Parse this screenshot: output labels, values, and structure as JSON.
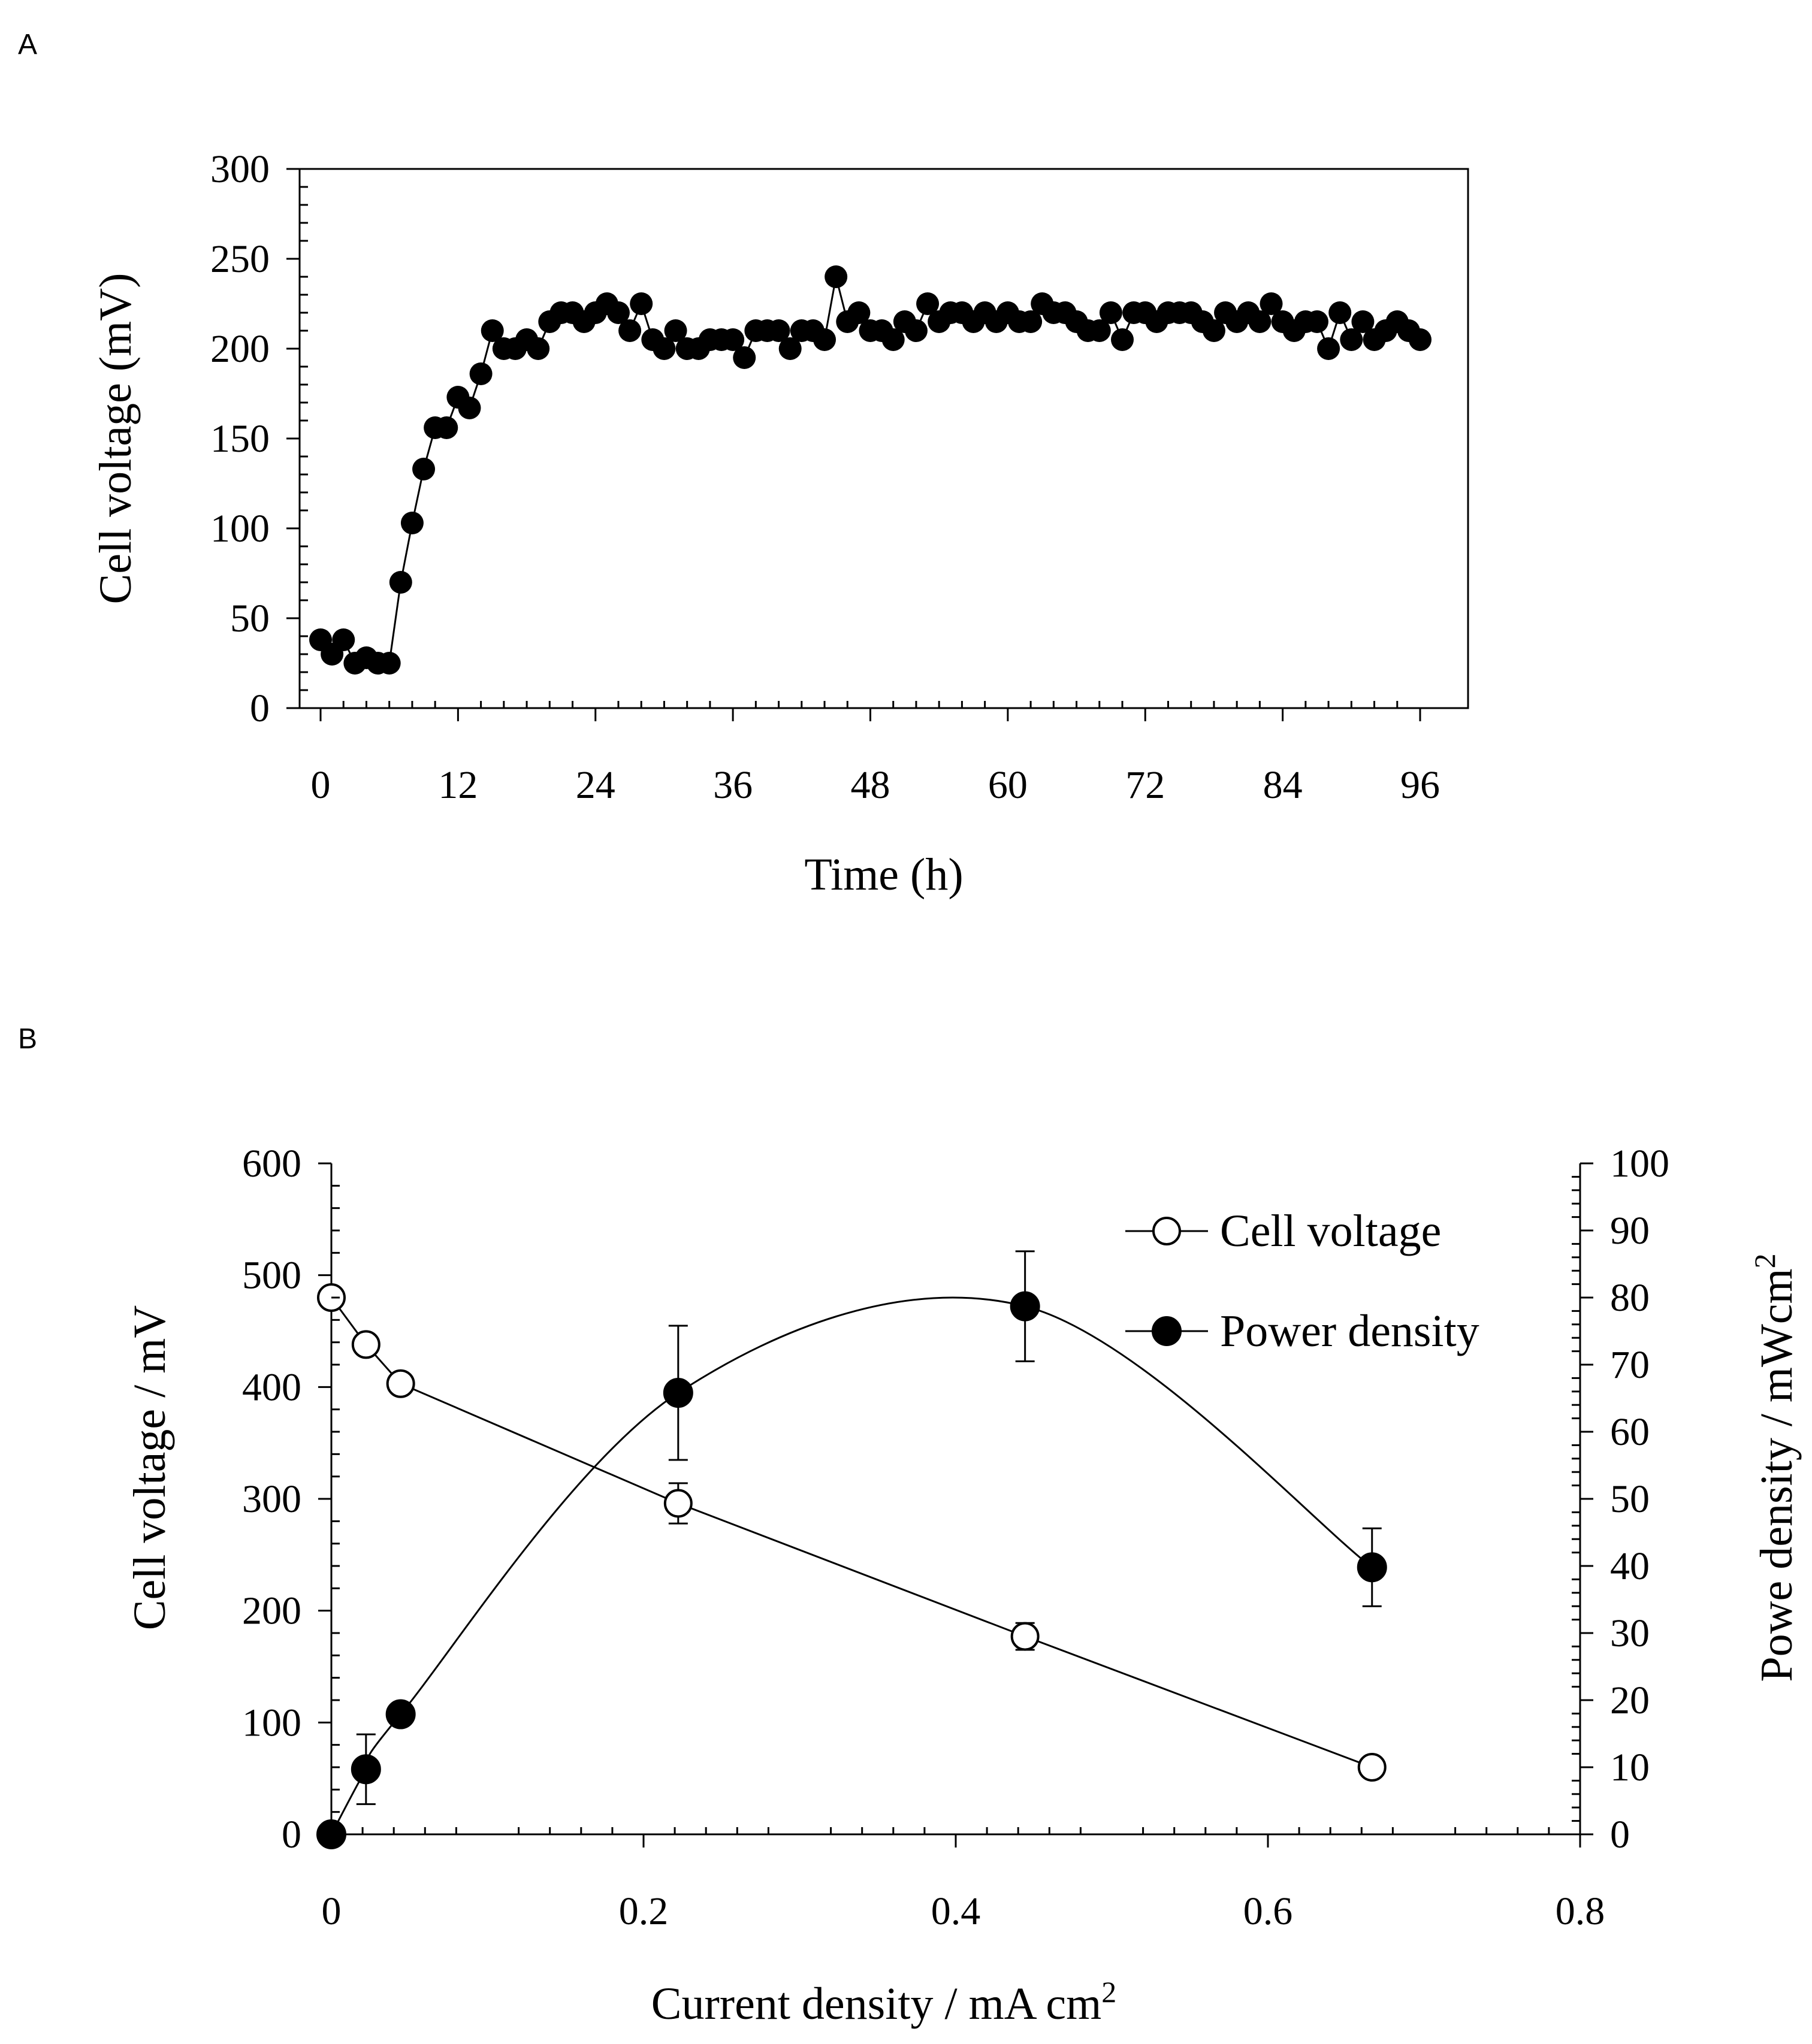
{
  "chart_data": [
    {
      "panel_label": "A",
      "type": "line",
      "title": "",
      "xlabel": "Time (h)",
      "ylabel": "Cell voltage (mV)",
      "xlim": [
        0,
        100
      ],
      "ylim": [
        0,
        300
      ],
      "xticks": [
        0,
        12,
        24,
        36,
        48,
        60,
        72,
        84,
        96
      ],
      "yticks": [
        0,
        50,
        100,
        150,
        200,
        250,
        300
      ],
      "grid": false,
      "series": [
        {
          "name": "Cell voltage",
          "marker": "filled-circle",
          "x": [
            0,
            1,
            2,
            3,
            4,
            5,
            6,
            7,
            8,
            9,
            10,
            11,
            12,
            13,
            14,
            15,
            16,
            17,
            18,
            19,
            20,
            21,
            22,
            23,
            24,
            25,
            26,
            27,
            28,
            29,
            30,
            31,
            32,
            33,
            34,
            35,
            36,
            37,
            38,
            39,
            40,
            41,
            42,
            43,
            44,
            45,
            46,
            47,
            48,
            49,
            50,
            51,
            52,
            53,
            54,
            55,
            56,
            57,
            58,
            59,
            60,
            61,
            62,
            63,
            64,
            65,
            66,
            67,
            68,
            69,
            70,
            71,
            72,
            73,
            74,
            75,
            76,
            77,
            78,
            79,
            80,
            81,
            82,
            83,
            84,
            85,
            86,
            87,
            88,
            89,
            90,
            91,
            92,
            93,
            94,
            95,
            96
          ],
          "y": [
            38,
            30,
            38,
            25,
            28,
            25,
            25,
            70,
            103,
            133,
            156,
            156,
            173,
            167,
            186,
            210,
            200,
            200,
            205,
            200,
            215,
            220,
            220,
            215,
            220,
            225,
            220,
            210,
            225,
            205,
            200,
            210,
            200,
            200,
            205,
            205,
            205,
            195,
            210,
            210,
            210,
            200,
            210,
            210,
            205,
            240,
            215,
            220,
            210,
            210,
            205,
            215,
            210,
            225,
            215,
            220,
            220,
            215,
            220,
            215,
            220,
            215,
            215,
            225,
            220,
            220,
            215,
            210,
            210,
            220,
            205,
            220,
            220,
            215,
            220,
            220,
            220,
            215,
            210,
            220,
            215,
            220,
            215,
            225,
            215,
            210,
            215,
            215,
            200,
            220,
            205,
            215,
            205,
            210,
            215,
            210,
            205
          ]
        }
      ]
    },
    {
      "panel_label": "B",
      "type": "line",
      "title": "",
      "xlabel": "Current density / mA cm",
      "xlabel_sup": "2",
      "ylabel": "Cell voltage / mV",
      "y2label": "Powe density / mWcm",
      "y2label_sup": "2",
      "xlim": [
        0,
        0.8
      ],
      "ylim": [
        0,
        600
      ],
      "y2lim": [
        0,
        100
      ],
      "xticks": [
        "0",
        "0.2",
        "0.4",
        "0.6",
        "0.8"
      ],
      "yticks": [
        0,
        100,
        200,
        300,
        400,
        500,
        600
      ],
      "y2ticks": [
        0,
        10,
        20,
        30,
        40,
        50,
        60,
        70,
        80,
        90,
        100
      ],
      "grid": false,
      "legend_position": "top-right",
      "series": [
        {
          "name": "Cell voltage",
          "axis": "left",
          "marker": "open-circle",
          "smooth": false,
          "x": [
            0,
            0.0222,
            0.0444,
            0.2222,
            0.4444,
            0.6667
          ],
          "y": [
            480,
            438,
            403,
            296,
            177,
            60
          ],
          "err": [
            0,
            0,
            0,
            18,
            12,
            0
          ]
        },
        {
          "name": "Power density",
          "axis": "right",
          "marker": "filled-circle",
          "smooth": true,
          "x": [
            0,
            0.0222,
            0.0444,
            0.2222,
            0.4444,
            0.6667
          ],
          "y": [
            0,
            9.7,
            17.9,
            65.8,
            78.7,
            39.8
          ],
          "err": [
            0,
            5.2,
            0,
            10,
            8.2,
            5.8
          ]
        }
      ]
    }
  ]
}
